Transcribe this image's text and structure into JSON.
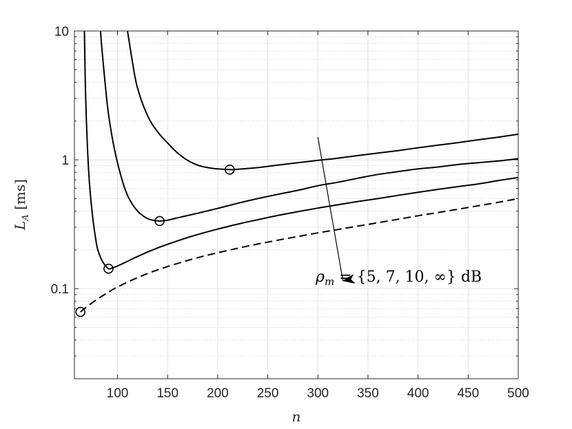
{
  "chart_data": {
    "type": "line",
    "xlabel": "n",
    "ylabel": {
      "symbol": "L",
      "subscript": "A",
      "unit": "[ms]"
    },
    "xlim": [
      57,
      500
    ],
    "ylim": [
      0.02,
      10
    ],
    "yscale": "log",
    "grid": true,
    "x_ticks": [
      100,
      150,
      200,
      250,
      300,
      350,
      400,
      450,
      500
    ],
    "y_tick_labels": [
      {
        "value": 0.1,
        "label": "0.1"
      },
      {
        "value": 1,
        "label": "1"
      },
      {
        "value": 10,
        "label": "10"
      }
    ],
    "annotation": {
      "rho": "ρ",
      "sub": "m",
      "body": " = {5, 7, 10, ∞} dB",
      "arrow_from": [
        300,
        1.5
      ],
      "arrow_to": [
        325,
        0.115
      ]
    },
    "series": [
      {
        "rho_db": 5,
        "style": "solid",
        "color": "#000000",
        "x": [
          110,
          115,
          120,
          130,
          140,
          150,
          160,
          170,
          180,
          190,
          200,
          212,
          220,
          240,
          260,
          280,
          300,
          320,
          340,
          360,
          380,
          400,
          420,
          440,
          460,
          480,
          500
        ],
        "y": [
          10,
          5.7,
          3.6,
          2.2,
          1.65,
          1.35,
          1.13,
          0.99,
          0.91,
          0.87,
          0.85,
          0.84,
          0.845,
          0.87,
          0.91,
          0.95,
          0.99,
          1.03,
          1.08,
          1.13,
          1.18,
          1.24,
          1.3,
          1.36,
          1.43,
          1.5,
          1.58
        ],
        "minimum": [
          212,
          0.84
        ]
      },
      {
        "rho_db": 7,
        "style": "solid",
        "color": "#000000",
        "x": [
          83,
          85,
          90,
          95,
          100,
          105,
          110,
          115,
          120,
          125,
          130,
          135,
          142,
          150,
          160,
          180,
          200,
          220,
          240,
          260,
          280,
          300,
          320,
          340,
          360,
          380,
          400,
          420,
          440,
          460,
          480,
          500
        ],
        "y": [
          10,
          6.5,
          2.6,
          1.45,
          0.95,
          0.68,
          0.53,
          0.45,
          0.4,
          0.37,
          0.35,
          0.34,
          0.335,
          0.34,
          0.355,
          0.385,
          0.42,
          0.46,
          0.5,
          0.54,
          0.58,
          0.63,
          0.67,
          0.72,
          0.77,
          0.81,
          0.85,
          0.88,
          0.92,
          0.95,
          0.98,
          1.02
        ],
        "minimum": [
          142,
          0.335
        ]
      },
      {
        "rho_db": 10,
        "style": "solid",
        "color": "#000000",
        "x": [
          67,
          68,
          70,
          72,
          75,
          78,
          80,
          83,
          86,
          91,
          95,
          100,
          110,
          120,
          140,
          160,
          180,
          200,
          220,
          240,
          260,
          280,
          300,
          320,
          340,
          360,
          380,
          400,
          420,
          440,
          460,
          480,
          500
        ],
        "y": [
          10,
          3.5,
          1.25,
          0.66,
          0.37,
          0.25,
          0.205,
          0.175,
          0.158,
          0.143,
          0.145,
          0.15,
          0.163,
          0.178,
          0.207,
          0.235,
          0.263,
          0.29,
          0.317,
          0.343,
          0.37,
          0.396,
          0.422,
          0.448,
          0.475,
          0.5,
          0.53,
          0.56,
          0.59,
          0.62,
          0.65,
          0.69,
          0.73
        ],
        "minimum": [
          91,
          0.143
        ]
      },
      {
        "rho_db": "∞",
        "style": "dashed",
        "color": "#000000",
        "x": [
          63,
          70,
          80,
          90,
          100,
          120,
          140,
          160,
          180,
          200,
          220,
          240,
          260,
          280,
          300,
          320,
          340,
          360,
          380,
          400,
          420,
          440,
          460,
          480,
          500
        ],
        "y": [
          0.066,
          0.073,
          0.083,
          0.093,
          0.103,
          0.122,
          0.14,
          0.157,
          0.174,
          0.19,
          0.206,
          0.222,
          0.238,
          0.254,
          0.271,
          0.288,
          0.306,
          0.325,
          0.346,
          0.368,
          0.39,
          0.414,
          0.44,
          0.468,
          0.5
        ],
        "minimum": [
          63,
          0.066
        ]
      }
    ]
  }
}
